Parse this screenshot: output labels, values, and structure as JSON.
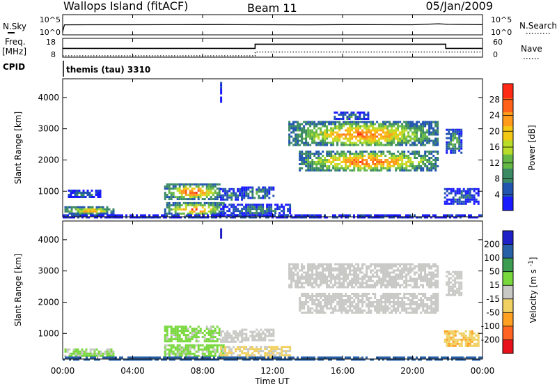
{
  "header": {
    "station": "Wallops Island (fitACF)",
    "beam": "Beam 11",
    "date": "05/Jan/2009"
  },
  "noise_panel": {
    "left_label": "N.Sky",
    "right_label": "N.Search",
    "left_ticks": [
      "10^5",
      "10^0"
    ],
    "right_ticks": [
      "10^5",
      "10^0"
    ]
  },
  "freq_panel": {
    "left_label_line1": "Freq.",
    "left_label_line2": "[MHz]",
    "right_label": "Nave",
    "left_ticks": [
      "18",
      "8"
    ],
    "right_ticks": [
      "60",
      "0"
    ]
  },
  "cpid": {
    "label": "CPID",
    "value": "themis (tau) 3310"
  },
  "time_axis": {
    "label": "Time UT",
    "ticks": [
      "00:00",
      "04:00",
      "08:00",
      "12:00",
      "16:00",
      "20:00",
      "00:00"
    ]
  },
  "colors": {
    "noise_line": "#000000",
    "freq_line": "#000000",
    "power_scale": [
      "#1a1aff",
      "#2255b0",
      "#3c8a64",
      "#66b846",
      "#b8dc28",
      "#f2c814",
      "#ff9a1a",
      "#ff6218",
      "#ff2a14"
    ],
    "velocity_scale": [
      "#e8101a",
      "#ff6420",
      "#ffa020",
      "#f0d060",
      "#c8c8c4",
      "#78d83c",
      "#3c9c50",
      "#2860a8",
      "#2020c8"
    ]
  },
  "chart_data": [
    {
      "type": "line",
      "title": "N.Sky / N.Search",
      "x_unit": "hours UT",
      "xlim": [
        0,
        24
      ],
      "yscale": "log",
      "ylim": [
        1,
        100000
      ],
      "series": [
        {
          "name": "N.Sky",
          "x": [
            0,
            0.1,
            2,
            4,
            6,
            8,
            9,
            10,
            12,
            14,
            16,
            18,
            20,
            21.5,
            22,
            24
          ],
          "y": [
            3,
            300,
            320,
            310,
            330,
            340,
            360,
            330,
            320,
            300,
            340,
            330,
            310,
            600,
            420,
            330
          ]
        },
        {
          "name": "N.Search",
          "x": [
            0,
            24
          ],
          "y": [
            300,
            300
          ]
        }
      ]
    },
    {
      "type": "line",
      "title": "Freq. / Nave",
      "x_unit": "hours UT",
      "xlim": [
        0,
        24
      ],
      "ylim": [
        8,
        18
      ],
      "y2lim": [
        0,
        60
      ],
      "series": [
        {
          "name": "Freq.",
          "x": [
            0,
            11,
            11,
            21.9,
            21.9,
            24
          ],
          "y": [
            12.6,
            12.6,
            15.2,
            15.2,
            12.6,
            12.6
          ]
        },
        {
          "name": "Nave",
          "x": [
            0,
            11,
            11,
            24
          ],
          "y": [
            0,
            0,
            14,
            14
          ],
          "axis": "right"
        }
      ]
    },
    {
      "type": "heatmap",
      "title": "Power",
      "xlabel": "Time UT",
      "ylabel": "Slant Range [km]",
      "x_unit": "hours UT",
      "xlim": [
        0,
        24
      ],
      "ylim": [
        180,
        4600
      ],
      "y_ticks": [
        1000,
        2000,
        3000,
        4000
      ],
      "colorbar_label": "Power [dB]",
      "colorbar_ticks": [
        4,
        8,
        12,
        16,
        20,
        24,
        28
      ],
      "colorbar_range": [
        0,
        32
      ],
      "echo_regions": [
        {
          "t0": 0.1,
          "t1": 2.9,
          "r0": 300,
          "r1": 520,
          "peak_db": 26
        },
        {
          "t0": 0.3,
          "t1": 2.2,
          "r0": 800,
          "r1": 1050,
          "peak_db": 8
        },
        {
          "t0": 5.8,
          "t1": 9.0,
          "r0": 780,
          "r1": 1250,
          "peak_db": 30
        },
        {
          "t0": 5.8,
          "t1": 9.2,
          "r0": 250,
          "r1": 650,
          "peak_db": 29
        },
        {
          "t0": 9.0,
          "t1": 10.2,
          "r0": 700,
          "r1": 1100,
          "peak_db": 10
        },
        {
          "t0": 10.2,
          "t1": 12.0,
          "r0": 750,
          "r1": 1150,
          "peak_db": 12
        },
        {
          "t0": 9.0,
          "t1": 13.0,
          "r0": 250,
          "r1": 600,
          "peak_db": 10
        },
        {
          "t0": 12.9,
          "t1": 21.4,
          "r0": 2450,
          "r1": 3250,
          "peak_db": 28
        },
        {
          "t0": 13.5,
          "t1": 21.4,
          "r0": 1650,
          "r1": 2300,
          "peak_db": 30
        },
        {
          "t0": 15.5,
          "t1": 17.5,
          "r0": 3300,
          "r1": 3550,
          "peak_db": 10
        },
        {
          "t0": 21.9,
          "t1": 22.8,
          "r0": 2200,
          "r1": 3000,
          "peak_db": 14
        },
        {
          "t0": 21.8,
          "t1": 23.8,
          "r0": 600,
          "r1": 1100,
          "peak_db": 8
        },
        {
          "t0": 9.0,
          "t1": 9.1,
          "r0": 3800,
          "r1": 4500,
          "peak_db": 6
        },
        {
          "t0": 0.0,
          "t1": 24.0,
          "r0": 180,
          "r1": 260,
          "peak_db": 8
        }
      ]
    },
    {
      "type": "heatmap",
      "title": "Velocity",
      "xlabel": "Time UT",
      "ylabel": "Slant Range [km]",
      "x_unit": "hours UT",
      "xlim": [
        0,
        24
      ],
      "ylim": [
        180,
        4600
      ],
      "y_ticks": [
        1000,
        2000,
        3000,
        4000
      ],
      "colorbar_label": "Velocity [m s^-1]",
      "colorbar_ticks": [
        -200,
        -100,
        -50,
        -15,
        15,
        50,
        100,
        200
      ],
      "colorbar_range": [
        -250,
        250
      ],
      "echo_regions": [
        {
          "t0": 0.1,
          "t1": 2.9,
          "r0": 300,
          "r1": 520,
          "vel": 20
        },
        {
          "t0": 5.8,
          "t1": 9.0,
          "r0": 780,
          "r1": 1250,
          "vel": 25
        },
        {
          "t0": 5.8,
          "t1": 9.2,
          "r0": 250,
          "r1": 650,
          "vel": 25
        },
        {
          "t0": 9.0,
          "t1": 10.2,
          "r0": 700,
          "r1": 1100,
          "vel": 0
        },
        {
          "t0": 10.2,
          "t1": 12.0,
          "r0": 750,
          "r1": 1150,
          "vel": 0
        },
        {
          "t0": 9.0,
          "t1": 13.0,
          "r0": 250,
          "r1": 600,
          "vel": -20
        },
        {
          "t0": 12.9,
          "t1": 21.4,
          "r0": 2450,
          "r1": 3250,
          "vel": 0
        },
        {
          "t0": 13.5,
          "t1": 21.4,
          "r0": 1650,
          "r1": 2300,
          "vel": 0
        },
        {
          "t0": 21.9,
          "t1": 22.8,
          "r0": 2200,
          "r1": 3000,
          "vel": 0
        },
        {
          "t0": 21.8,
          "t1": 23.8,
          "r0": 600,
          "r1": 1100,
          "vel": -40
        },
        {
          "t0": 9.0,
          "t1": 9.1,
          "r0": 3900,
          "r1": 4500,
          "vel": 220
        },
        {
          "t0": 0.0,
          "t1": 24.0,
          "r0": 180,
          "r1": 260,
          "vel": 120
        }
      ]
    }
  ]
}
